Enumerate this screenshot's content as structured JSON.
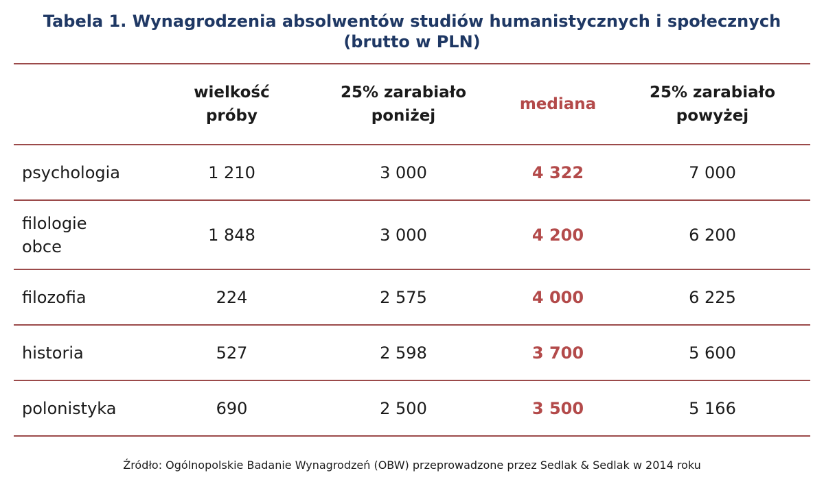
{
  "title": {
    "line1": "Tabela 1. Wynagrodzenia absolwentów studiów humanistycznych i społecznych",
    "line2": "(brutto w PLN)"
  },
  "table": {
    "headers": {
      "name": "",
      "sample_size": [
        "wielkość",
        "próby"
      ],
      "lower_25": [
        "25% zarabiało",
        "poniżej"
      ],
      "median": "mediana",
      "upper_25": [
        "25% zarabiało",
        "powyżej"
      ]
    },
    "rows": [
      {
        "name": [
          "psychologia"
        ],
        "sample_size": "1 210",
        "lower_25": "3 000",
        "median": "4 322",
        "upper_25": "7 000"
      },
      {
        "name": [
          "filologie",
          "obce"
        ],
        "sample_size": "1 848",
        "lower_25": "3 000",
        "median": "4 200",
        "upper_25": "6 200"
      },
      {
        "name": [
          "filozofia"
        ],
        "sample_size": "224",
        "lower_25": "2 575",
        "median": "4 000",
        "upper_25": "6 225"
      },
      {
        "name": [
          "historia"
        ],
        "sample_size": "527",
        "lower_25": "2 598",
        "median": "3 700",
        "upper_25": "5 600"
      },
      {
        "name": [
          "polonistyka"
        ],
        "sample_size": "690",
        "lower_25": "2 500",
        "median": "3 500",
        "upper_25": "5 166"
      }
    ]
  },
  "source": "Źródło: Ogólnopolskie Badanie Wynagrodzeń (OBW) przeprowadzone przez Sedlak & Sedlak w 2014 roku",
  "colors": {
    "title": "#1f3864",
    "median": "#b34a4a",
    "rule": "#9b4a4a"
  }
}
